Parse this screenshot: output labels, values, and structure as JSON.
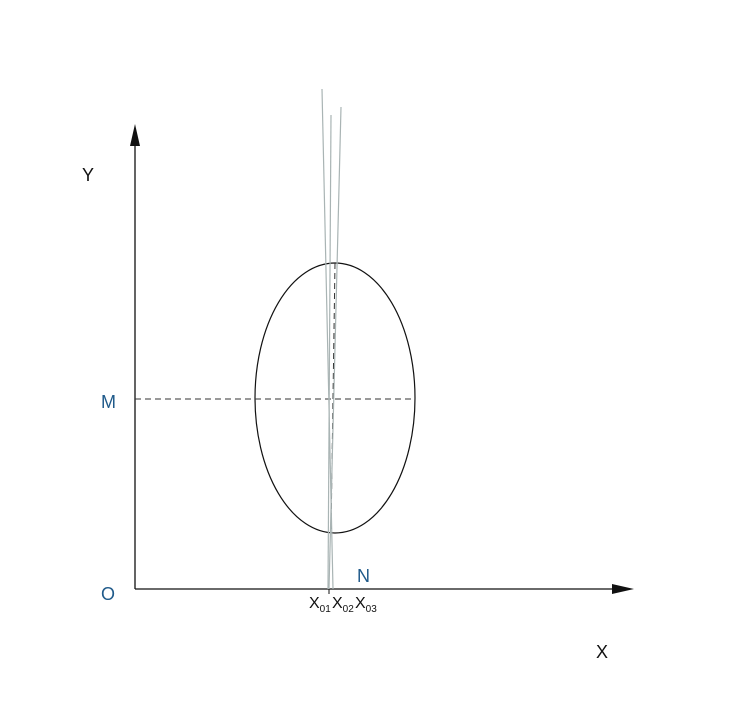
{
  "axes": {
    "x_label": "X",
    "y_label": "Y",
    "origin_label": "O"
  },
  "points": {
    "m_label": "M",
    "n_label": "N"
  },
  "x_marks": [
    {
      "base": "X",
      "sub": "01"
    },
    {
      "base": "X",
      "sub": "02"
    },
    {
      "base": "X",
      "sub": "03"
    }
  ],
  "colors": {
    "point_label": "#1f5a8a",
    "line": "#111111",
    "thin_line": "#a9b4b4"
  }
}
